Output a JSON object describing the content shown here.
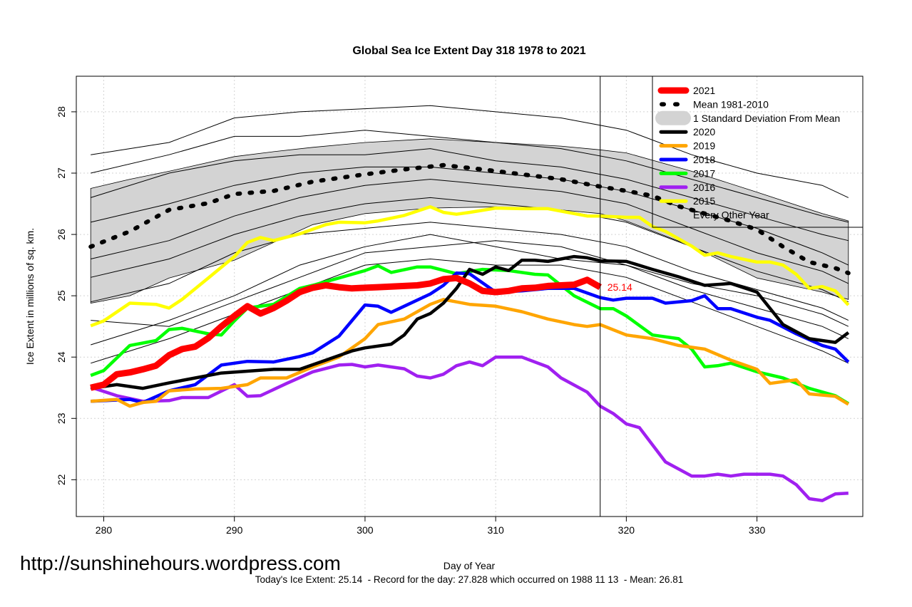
{
  "chart_data": {
    "type": "line",
    "title": "Global Sea Ice Extent Day 318 1978 to 2021",
    "xlabel": "Day of Year",
    "ylabel": "Ice Extent in millions of sq. km.",
    "xlim": [
      277.9,
      338.1
    ],
    "ylim": [
      21.4,
      28.58
    ],
    "xticks": [
      280,
      290,
      300,
      310,
      320,
      330
    ],
    "yticks": [
      22,
      23,
      24,
      25,
      26,
      27,
      28
    ],
    "grid": true,
    "legend_position": "top-right",
    "current_day_marker": 318,
    "current_value_label": "25.14",
    "footer": "Today's Ice Extent: 25.14  - Record for the day: 27.828 which occurred on 1988 11 13  - Mean: 26.81",
    "watermark": "http://sunshinehours.wordpress.com",
    "legend": [
      {
        "label": "2021",
        "color": "#ff0000",
        "style": "thick"
      },
      {
        "label": "Mean 1981-2010",
        "color": "#000000",
        "style": "dotted"
      },
      {
        "label": "1 Standard Deviation From Mean",
        "color": "#d3d3d3",
        "style": "band"
      },
      {
        "label": "2020",
        "color": "#000000",
        "style": "line"
      },
      {
        "label": "2019",
        "color": "#ffa500",
        "style": "line"
      },
      {
        "label": "2018",
        "color": "#0000ff",
        "style": "line"
      },
      {
        "label": "2017",
        "color": "#00ff00",
        "style": "line"
      },
      {
        "label": "2016",
        "color": "#a020f0",
        "style": "line"
      },
      {
        "label": "2015",
        "color": "#ffff00",
        "style": "line"
      },
      {
        "label": "Every Other Year",
        "color": "#000000",
        "style": "thin"
      }
    ],
    "sd_band": {
      "x": [
        279,
        282,
        285,
        290,
        293,
        296,
        300,
        305,
        310,
        315,
        318,
        320,
        325,
        330,
        335,
        337
      ],
      "upper": [
        26.75,
        26.9,
        27.03,
        27.27,
        27.35,
        27.42,
        27.5,
        27.56,
        27.5,
        27.44,
        27.38,
        27.33,
        27.03,
        26.69,
        26.34,
        26.22
      ],
      "lower": [
        24.88,
        25.0,
        25.29,
        25.58,
        25.87,
        26.16,
        26.34,
        26.43,
        26.45,
        26.4,
        26.34,
        26.22,
        25.81,
        25.29,
        25.06,
        24.94
      ]
    },
    "mean": {
      "x": [
        279,
        282,
        285,
        288,
        290,
        293,
        296,
        300,
        303,
        306,
        309,
        312,
        315,
        318,
        320,
        322,
        324,
        326,
        328,
        330,
        332,
        334,
        336,
        337
      ],
      "y": [
        25.8,
        26.05,
        26.4,
        26.51,
        26.66,
        26.71,
        26.86,
        26.98,
        27.06,
        27.13,
        27.06,
        26.98,
        26.9,
        26.78,
        26.71,
        26.63,
        26.46,
        26.34,
        26.22,
        26.08,
        25.8,
        25.55,
        25.45,
        25.37
      ]
    },
    "other_years": [
      {
        "x": [
          279,
          285,
          290,
          295,
          300,
          305,
          310,
          315,
          320,
          325,
          330,
          335,
          337
        ],
        "y": [
          27.3,
          27.5,
          27.9,
          28.0,
          28.05,
          28.1,
          28.0,
          27.9,
          27.7,
          27.3,
          27.0,
          26.8,
          26.6
        ]
      },
      {
        "x": [
          279,
          285,
          290,
          295,
          300,
          305,
          310,
          315,
          320,
          325,
          330,
          335,
          337
        ],
        "y": [
          27.0,
          27.3,
          27.6,
          27.6,
          27.7,
          27.6,
          27.5,
          27.4,
          27.2,
          26.9,
          26.6,
          26.3,
          26.2
        ]
      },
      {
        "x": [
          279,
          285,
          290,
          295,
          300,
          305,
          310,
          315,
          320,
          325,
          330,
          335,
          337
        ],
        "y": [
          26.6,
          27.0,
          27.2,
          27.3,
          27.3,
          27.4,
          27.2,
          27.1,
          26.9,
          26.6,
          26.3,
          26.0,
          25.9
        ]
      },
      {
        "x": [
          279,
          285,
          290,
          295,
          300,
          305,
          310,
          315,
          320,
          325,
          330,
          335,
          337
        ],
        "y": [
          26.2,
          26.5,
          26.8,
          27.0,
          27.1,
          27.1,
          27.0,
          26.9,
          26.7,
          26.4,
          26.1,
          25.7,
          25.5
        ]
      },
      {
        "x": [
          279,
          285,
          290,
          295,
          300,
          305,
          310,
          315,
          320,
          325,
          330,
          335,
          337
        ],
        "y": [
          25.6,
          25.9,
          26.3,
          26.6,
          26.8,
          26.9,
          26.8,
          26.7,
          26.5,
          26.1,
          25.7,
          25.4,
          25.2
        ]
      },
      {
        "x": [
          279,
          285,
          290,
          295,
          300,
          305,
          310,
          315,
          320,
          325,
          330,
          335,
          337
        ],
        "y": [
          25.3,
          25.6,
          26.0,
          26.3,
          26.5,
          26.6,
          26.5,
          26.4,
          26.2,
          25.8,
          25.4,
          25.1,
          24.9
        ]
      },
      {
        "x": [
          279,
          285,
          290,
          295,
          300,
          305,
          310,
          315,
          320,
          325,
          330,
          335,
          337
        ],
        "y": [
          24.9,
          25.2,
          25.7,
          26.0,
          26.1,
          26.2,
          26.1,
          26.0,
          25.8,
          25.4,
          25.1,
          24.8,
          24.6
        ]
      },
      {
        "x": [
          279,
          285,
          290,
          295,
          300,
          305,
          310,
          315,
          320,
          325,
          330,
          335,
          337
        ],
        "y": [
          24.6,
          24.5,
          24.9,
          25.3,
          25.7,
          25.8,
          25.9,
          25.8,
          25.5,
          25.2,
          25.0,
          24.7,
          24.5
        ]
      },
      {
        "x": [
          279,
          285,
          290,
          295,
          300,
          305,
          310,
          315,
          320,
          325,
          330,
          335,
          337
        ],
        "y": [
          24.2,
          24.6,
          25.0,
          25.5,
          25.8,
          26.0,
          25.8,
          25.6,
          25.5,
          25.1,
          24.8,
          24.5,
          24.3
        ]
      },
      {
        "x": [
          279,
          285,
          290,
          295,
          300,
          305,
          310,
          315,
          320,
          325,
          330,
          335,
          337
        ],
        "y": [
          23.9,
          24.3,
          24.7,
          25.1,
          25.5,
          25.6,
          25.5,
          25.5,
          25.3,
          24.9,
          24.5,
          24.1,
          23.9
        ]
      }
    ],
    "series": [
      {
        "name": "2015",
        "color": "#ffff00",
        "x": [
          279,
          280,
          282,
          284,
          285,
          286,
          288,
          290,
          291,
          292,
          293,
          295,
          297,
          298,
          300,
          301,
          303,
          305,
          306,
          307,
          308,
          310,
          312,
          314,
          316,
          317,
          318,
          320,
          321,
          322,
          323,
          325,
          326,
          327,
          328,
          330,
          331,
          332,
          333,
          334,
          335,
          336,
          337
        ],
        "y": [
          24.51,
          24.59,
          24.88,
          24.86,
          24.8,
          24.94,
          25.29,
          25.64,
          25.87,
          25.95,
          25.9,
          26.01,
          26.16,
          26.2,
          26.19,
          26.22,
          26.31,
          26.45,
          26.36,
          26.33,
          26.36,
          26.43,
          26.42,
          26.42,
          26.34,
          26.3,
          26.3,
          26.28,
          26.28,
          26.13,
          26.05,
          25.81,
          25.66,
          25.7,
          25.64,
          25.55,
          25.55,
          25.5,
          25.35,
          25.12,
          25.15,
          25.08,
          24.85
        ]
      },
      {
        "name": "2016",
        "color": "#a020f0",
        "x": [
          279,
          281,
          283,
          285,
          286,
          288,
          290,
          291,
          292,
          294,
          296,
          298,
          299,
          300,
          301,
          303,
          304,
          305,
          306,
          307,
          308,
          309,
          310,
          312,
          314,
          315,
          317,
          318,
          319,
          320,
          321,
          323,
          325,
          326,
          327,
          328,
          329,
          331,
          332,
          333,
          334,
          335,
          336,
          337
        ],
        "y": [
          23.51,
          23.37,
          23.28,
          23.29,
          23.34,
          23.34,
          23.55,
          23.36,
          23.37,
          23.57,
          23.76,
          23.87,
          23.88,
          23.84,
          23.87,
          23.81,
          23.69,
          23.66,
          23.72,
          23.86,
          23.92,
          23.86,
          24.0,
          24.0,
          23.84,
          23.66,
          23.43,
          23.2,
          23.08,
          22.91,
          22.85,
          22.29,
          22.06,
          22.06,
          22.09,
          22.06,
          22.09,
          22.09,
          22.06,
          21.92,
          21.69,
          21.66,
          21.77,
          21.78
        ]
      },
      {
        "name": "2017",
        "color": "#00ff00",
        "x": [
          279,
          280,
          282,
          284,
          285,
          286,
          288,
          289,
          290,
          291,
          293,
          295,
          296,
          298,
          300,
          301,
          302,
          304,
          305,
          307,
          309,
          311,
          313,
          314,
          316,
          318,
          319,
          320,
          322,
          324,
          325,
          326,
          327,
          328,
          330,
          332,
          334,
          336,
          337
        ],
        "y": [
          23.7,
          23.78,
          24.19,
          24.27,
          24.45,
          24.47,
          24.38,
          24.36,
          24.59,
          24.8,
          24.86,
          25.12,
          25.17,
          25.29,
          25.41,
          25.49,
          25.38,
          25.47,
          25.47,
          25.36,
          25.43,
          25.41,
          25.35,
          25.34,
          25.0,
          24.79,
          24.79,
          24.67,
          24.36,
          24.3,
          24.13,
          23.84,
          23.86,
          23.9,
          23.76,
          23.66,
          23.49,
          23.37,
          23.24
        ]
      },
      {
        "name": "2018",
        "color": "#0000ff",
        "x": [
          279,
          282,
          283,
          285,
          287,
          289,
          291,
          293,
          295,
          296,
          298,
          300,
          301,
          302,
          303,
          305,
          306,
          307,
          308,
          310,
          312,
          314,
          316,
          318,
          319,
          320,
          322,
          323,
          325,
          326,
          327,
          328,
          330,
          331,
          333,
          335,
          336,
          337
        ],
        "y": [
          23.28,
          23.31,
          23.26,
          23.45,
          23.55,
          23.87,
          23.93,
          23.92,
          24.01,
          24.07,
          24.34,
          24.85,
          24.83,
          24.73,
          24.83,
          25.03,
          25.17,
          25.37,
          25.36,
          25.06,
          25.08,
          25.12,
          25.12,
          24.97,
          24.93,
          24.96,
          24.96,
          24.88,
          24.92,
          25.0,
          24.79,
          24.79,
          24.65,
          24.6,
          24.38,
          24.19,
          24.13,
          23.92
        ]
      },
      {
        "name": "2019",
        "color": "#ffa500",
        "x": [
          279,
          281,
          282,
          283,
          284,
          285,
          287,
          289,
          291,
          292,
          294,
          296,
          298,
          299,
          300,
          301,
          303,
          305,
          306,
          308,
          310,
          312,
          314,
          316,
          317,
          318,
          320,
          322,
          324,
          326,
          328,
          330,
          331,
          333,
          334,
          336,
          337
        ],
        "y": [
          23.28,
          23.31,
          23.2,
          23.26,
          23.28,
          23.45,
          23.48,
          23.49,
          23.55,
          23.66,
          23.66,
          23.84,
          24.0,
          24.15,
          24.3,
          24.53,
          24.62,
          24.86,
          24.94,
          24.86,
          24.83,
          24.74,
          24.62,
          24.53,
          24.5,
          24.53,
          24.36,
          24.3,
          24.19,
          24.13,
          23.95,
          23.8,
          23.57,
          23.63,
          23.4,
          23.36,
          23.23
        ]
      },
      {
        "name": "2020",
        "color": "#000000",
        "x": [
          279,
          281,
          283,
          285,
          287,
          289,
          291,
          293,
          295,
          297,
          299,
          300,
          302,
          303,
          304,
          305,
          306,
          307,
          308,
          309,
          310,
          311,
          312,
          313,
          314,
          315,
          316,
          317,
          318,
          320,
          322,
          324,
          326,
          328,
          330,
          332,
          334,
          336,
          337
        ],
        "y": [
          23.49,
          23.55,
          23.49,
          23.58,
          23.66,
          23.74,
          23.77,
          23.8,
          23.8,
          23.95,
          24.1,
          24.15,
          24.21,
          24.36,
          24.62,
          24.71,
          24.88,
          25.12,
          25.43,
          25.35,
          25.47,
          25.41,
          25.58,
          25.58,
          25.56,
          25.6,
          25.64,
          25.62,
          25.57,
          25.56,
          25.43,
          25.31,
          25.17,
          25.2,
          25.06,
          24.53,
          24.3,
          24.24,
          24.4
        ]
      },
      {
        "name": "2021",
        "color": "#ff0000",
        "x": [
          279,
          280,
          281,
          282,
          283,
          284,
          285,
          286,
          287,
          288,
          289,
          290,
          291,
          292,
          293,
          294,
          295,
          296,
          297,
          298,
          299,
          300,
          301,
          302,
          303,
          304,
          305,
          306,
          307,
          308,
          309,
          310,
          311,
          312,
          313,
          314,
          315,
          316,
          317,
          318
        ],
        "y": [
          23.5,
          23.55,
          23.72,
          23.75,
          23.8,
          23.86,
          24.03,
          24.13,
          24.17,
          24.31,
          24.5,
          24.67,
          24.83,
          24.71,
          24.8,
          24.92,
          25.06,
          25.13,
          25.17,
          25.14,
          25.12,
          25.13,
          25.14,
          25.15,
          25.16,
          25.17,
          25.2,
          25.27,
          25.29,
          25.2,
          25.08,
          25.06,
          25.08,
          25.12,
          25.13,
          25.16,
          25.17,
          25.18,
          25.26,
          25.14
        ]
      }
    ]
  }
}
